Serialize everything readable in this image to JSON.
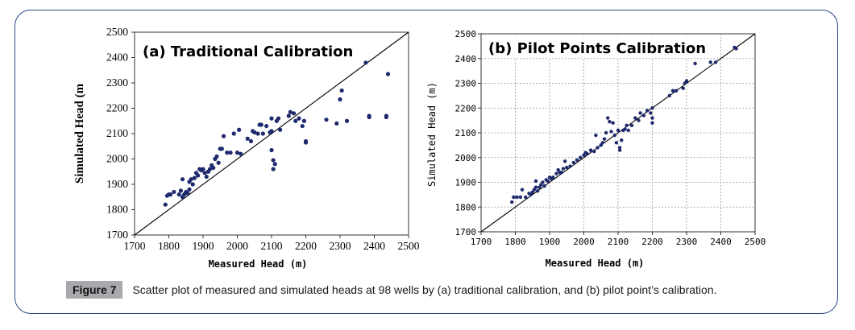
{
  "figure": {
    "label": "Figure 7",
    "caption": "Scatter plot of measured and simulated heads at 98 wells by (a) traditional calibration, and (b) pilot point’s calibration."
  },
  "colors": {
    "points": "#1f2a6e",
    "line": "#000000",
    "frame": "#2e4a86",
    "grid": "#9a9a9a"
  },
  "chart_data": [
    {
      "type": "scatter",
      "title": "(a) Traditional Calibration",
      "xlabel": "Measured Head (m)",
      "ylabel": "Simulated Head (m",
      "xlim": [
        1700,
        2500
      ],
      "ylim": [
        1700,
        2500
      ],
      "xticks": [
        "1700",
        "1800",
        "1900",
        "2000",
        "2100",
        "2200",
        "2300",
        "2400",
        "2500"
      ],
      "yticks": [
        "1700",
        "1800",
        "1900",
        "2000",
        "2100",
        "2200",
        "2300",
        "2400",
        "2500"
      ],
      "grid": false,
      "reference_line": [
        [
          1700,
          1700
        ],
        [
          2500,
          2500
        ]
      ],
      "points": [
        [
          1790,
          1820
        ],
        [
          1795,
          1855
        ],
        [
          1800,
          1860
        ],
        [
          1805,
          1860
        ],
        [
          1815,
          1870
        ],
        [
          1830,
          1860
        ],
        [
          1835,
          1875
        ],
        [
          1840,
          1850
        ],
        [
          1840,
          1920
        ],
        [
          1845,
          1860
        ],
        [
          1850,
          1870
        ],
        [
          1855,
          1865
        ],
        [
          1860,
          1880
        ],
        [
          1860,
          1910
        ],
        [
          1865,
          1920
        ],
        [
          1870,
          1900
        ],
        [
          1875,
          1925
        ],
        [
          1880,
          1945
        ],
        [
          1885,
          1935
        ],
        [
          1890,
          1960
        ],
        [
          1895,
          1955
        ],
        [
          1900,
          1960
        ],
        [
          1905,
          1945
        ],
        [
          1910,
          1930
        ],
        [
          1915,
          1950
        ],
        [
          1920,
          1960
        ],
        [
          1925,
          1975
        ],
        [
          1930,
          1965
        ],
        [
          1935,
          2000
        ],
        [
          1940,
          2010
        ],
        [
          1945,
          1985
        ],
        [
          1950,
          2040
        ],
        [
          1955,
          2040
        ],
        [
          1960,
          2090
        ],
        [
          1970,
          2025
        ],
        [
          1980,
          2025
        ],
        [
          1990,
          2100
        ],
        [
          2000,
          2025
        ],
        [
          2005,
          2115
        ],
        [
          2010,
          2020
        ],
        [
          2030,
          2080
        ],
        [
          2040,
          2070
        ],
        [
          2045,
          2110
        ],
        [
          2050,
          2105
        ],
        [
          2060,
          2100
        ],
        [
          2065,
          2135
        ],
        [
          2070,
          2135
        ],
        [
          2075,
          2100
        ],
        [
          2085,
          2130
        ],
        [
          2095,
          2105
        ],
        [
          2100,
          2160
        ],
        [
          2100,
          2110
        ],
        [
          2100,
          2035
        ],
        [
          2105,
          1995
        ],
        [
          2105,
          1960
        ],
        [
          2110,
          1980
        ],
        [
          2115,
          2150
        ],
        [
          2120,
          2160
        ],
        [
          2125,
          2115
        ],
        [
          2150,
          2170
        ],
        [
          2155,
          2185
        ],
        [
          2165,
          2180
        ],
        [
          2170,
          2150
        ],
        [
          2180,
          2160
        ],
        [
          2190,
          2130
        ],
        [
          2195,
          2150
        ],
        [
          2200,
          2070
        ],
        [
          2200,
          2065
        ],
        [
          2260,
          2155
        ],
        [
          2290,
          2140
        ],
        [
          2300,
          2235
        ],
        [
          2305,
          2270
        ],
        [
          2320,
          2150
        ],
        [
          2375,
          2380
        ],
        [
          2385,
          2170
        ],
        [
          2385,
          2165
        ],
        [
          2435,
          2170
        ],
        [
          2435,
          2165
        ],
        [
          2440,
          2335
        ]
      ]
    },
    {
      "type": "scatter",
      "title": "(b) Pilot Points Calibration",
      "xlabel": "Measured Head (m)",
      "ylabel": "Simulated Head (m)",
      "xlim": [
        1700,
        2500
      ],
      "ylim": [
        1700,
        2500
      ],
      "xticks": [
        "1700",
        "1800",
        "1900",
        "2000",
        "2100",
        "2200",
        "2300",
        "2400",
        "2500"
      ],
      "yticks": [
        "1700",
        "1800",
        "1900",
        "2000",
        "2100",
        "2200",
        "2300",
        "2400",
        "2500"
      ],
      "grid": true,
      "reference_line": [
        [
          1700,
          1700
        ],
        [
          2500,
          2500
        ]
      ],
      "points": [
        [
          1790,
          1820
        ],
        [
          1795,
          1840
        ],
        [
          1805,
          1840
        ],
        [
          1815,
          1840
        ],
        [
          1820,
          1870
        ],
        [
          1830,
          1840
        ],
        [
          1840,
          1855
        ],
        [
          1845,
          1850
        ],
        [
          1850,
          1860
        ],
        [
          1855,
          1870
        ],
        [
          1860,
          1880
        ],
        [
          1860,
          1905
        ],
        [
          1865,
          1865
        ],
        [
          1870,
          1880
        ],
        [
          1875,
          1890
        ],
        [
          1880,
          1900
        ],
        [
          1885,
          1885
        ],
        [
          1890,
          1910
        ],
        [
          1895,
          1905
        ],
        [
          1900,
          1920
        ],
        [
          1905,
          1915
        ],
        [
          1910,
          1920
        ],
        [
          1920,
          1935
        ],
        [
          1925,
          1950
        ],
        [
          1930,
          1940
        ],
        [
          1935,
          1940
        ],
        [
          1940,
          1955
        ],
        [
          1945,
          1985
        ],
        [
          1950,
          1960
        ],
        [
          1960,
          1965
        ],
        [
          1970,
          1980
        ],
        [
          1980,
          1990
        ],
        [
          1990,
          2000
        ],
        [
          2000,
          2010
        ],
        [
          2005,
          2020
        ],
        [
          2010,
          2015
        ],
        [
          2020,
          2030
        ],
        [
          2030,
          2025
        ],
        [
          2035,
          2090
        ],
        [
          2040,
          2040
        ],
        [
          2050,
          2050
        ],
        [
          2055,
          2060
        ],
        [
          2060,
          2075
        ],
        [
          2065,
          2100
        ],
        [
          2070,
          2160
        ],
        [
          2075,
          2145
        ],
        [
          2080,
          2105
        ],
        [
          2085,
          2140
        ],
        [
          2090,
          2090
        ],
        [
          2095,
          2060
        ],
        [
          2100,
          2110
        ],
        [
          2105,
          2040
        ],
        [
          2105,
          2030
        ],
        [
          2110,
          2070
        ],
        [
          2115,
          2110
        ],
        [
          2120,
          2115
        ],
        [
          2125,
          2130
        ],
        [
          2130,
          2110
        ],
        [
          2140,
          2130
        ],
        [
          2150,
          2160
        ],
        [
          2160,
          2150
        ],
        [
          2165,
          2180
        ],
        [
          2175,
          2170
        ],
        [
          2185,
          2190
        ],
        [
          2195,
          2180
        ],
        [
          2200,
          2200
        ],
        [
          2200,
          2160
        ],
        [
          2200,
          2140
        ],
        [
          2250,
          2250
        ],
        [
          2260,
          2270
        ],
        [
          2270,
          2270
        ],
        [
          2290,
          2280
        ],
        [
          2295,
          2300
        ],
        [
          2300,
          2310
        ],
        [
          2325,
          2380
        ],
        [
          2370,
          2385
        ],
        [
          2385,
          2385
        ],
        [
          2440,
          2445
        ],
        [
          2445,
          2440
        ]
      ]
    }
  ]
}
